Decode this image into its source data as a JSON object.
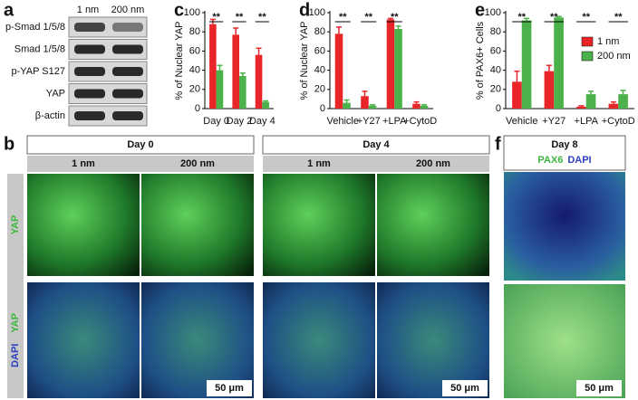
{
  "panels": {
    "a": {
      "label": "a",
      "columns": [
        "1 nm",
        "200 nm"
      ],
      "rows": [
        "p-Smad 1/5/8",
        "Smad 1/5/8",
        "p-YAP S127",
        "YAP",
        "β-actin"
      ]
    },
    "b": {
      "label": "b",
      "groups": [
        {
          "title": "Day 0",
          "columns": [
            "1 nm",
            "200 nm"
          ]
        },
        {
          "title": "Day 4",
          "columns": [
            "1 nm",
            "200 nm"
          ]
        }
      ],
      "rows": [
        [
          "YAP"
        ],
        [
          "DAPI",
          "YAP"
        ]
      ],
      "scale_bar": "50 μm"
    },
    "f": {
      "label": "f",
      "title": "Day 8",
      "stains": [
        "PAX6",
        "DAPI"
      ],
      "scale_bar": "50 μm"
    }
  },
  "chart_data": [
    {
      "type": "bar",
      "panel": "c",
      "ylabel": "% of Nuclear YAP",
      "categories": [
        "Day 0",
        "Day 2",
        "Day 4"
      ],
      "series": [
        {
          "name": "1 nm",
          "color": "#e8262a",
          "values": [
            88,
            77,
            56
          ],
          "errors": [
            5,
            7,
            7
          ]
        },
        {
          "name": "200 nm",
          "color": "#4bb24b",
          "values": [
            40,
            34,
            7
          ],
          "errors": [
            5,
            3,
            1
          ]
        }
      ],
      "ylim": [
        0,
        100
      ],
      "yticks": [
        0,
        20,
        40,
        60,
        80,
        100
      ],
      "annotations": [
        "**",
        "**",
        "**"
      ]
    },
    {
      "type": "bar",
      "panel": "d",
      "ylabel": "% of Nuclear YAP",
      "categories": [
        "Vehicle",
        "+Y27",
        "+LPA",
        "+CytoD"
      ],
      "series": [
        {
          "name": "1 nm",
          "color": "#e8262a",
          "values": [
            78,
            13,
            93,
            5
          ],
          "errors": [
            7,
            5,
            1,
            2
          ]
        },
        {
          "name": "200 nm",
          "color": "#4bb24b",
          "values": [
            6,
            3,
            83,
            3
          ],
          "errors": [
            3,
            1,
            3,
            1
          ]
        }
      ],
      "ylim": [
        0,
        100
      ],
      "yticks": [
        0,
        20,
        40,
        60,
        80,
        100
      ],
      "annotations": [
        "**",
        "**",
        "**"
      ]
    },
    {
      "type": "bar",
      "panel": "e",
      "ylabel": "% of PAX6+ Cells",
      "categories": [
        "Vehicle",
        "+Y27",
        "+LPA",
        "+CytoD"
      ],
      "series": [
        {
          "name": "1 nm",
          "color": "#e8262a",
          "values": [
            28,
            39,
            2,
            5
          ],
          "errors": [
            11,
            6,
            1,
            2
          ]
        },
        {
          "name": "200 nm",
          "color": "#4bb24b",
          "values": [
            92,
            95,
            15,
            15
          ],
          "errors": [
            2,
            1,
            3,
            4
          ]
        }
      ],
      "ylim": [
        0,
        100
      ],
      "yticks": [
        0,
        20,
        40,
        60,
        80,
        100
      ],
      "annotations": [
        "**",
        "**",
        "**",
        "**"
      ],
      "legend": "top-right"
    }
  ]
}
